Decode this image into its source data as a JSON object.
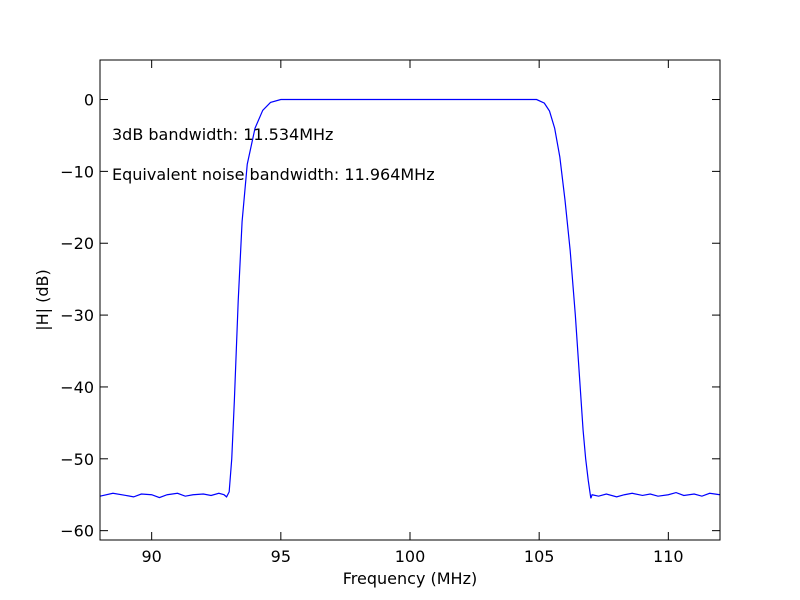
{
  "chart_data": {
    "type": "line",
    "xlabel": "Frequency (MHz)",
    "ylabel": "|H| (dB)",
    "xlim": [
      88,
      112
    ],
    "ylim": [
      -61.3,
      5.5
    ],
    "x_ticks": [
      90,
      95,
      100,
      105,
      110
    ],
    "y_ticks": [
      0,
      -10,
      -20,
      -30,
      -40,
      -50,
      -60
    ],
    "x_tick_labels": [
      "90",
      "95",
      "100",
      "105",
      "110"
    ],
    "y_tick_labels": [
      "0",
      "−10",
      "−20",
      "−30",
      "−40",
      "−50",
      "−60"
    ],
    "grid": false,
    "line_color": "#0000ff",
    "annotations": [
      "3dB bandwidth: 11.534MHz",
      "Equivalent noise bandwidth: 11.964MHz"
    ],
    "series": [
      {
        "x": [
          88,
          88.5,
          89,
          89.3,
          89.6,
          90,
          90.3,
          90.6,
          91,
          91.3,
          91.6,
          92,
          92.3,
          92.6,
          92.8,
          92.9,
          93.0,
          93.1,
          93.2,
          93.35,
          93.5,
          93.7,
          94.0,
          94.3,
          94.6,
          95.0,
          96,
          97,
          98,
          99,
          100,
          101,
          102,
          103,
          104,
          104.9,
          105.2,
          105.4,
          105.6,
          105.8,
          106.0,
          106.2,
          106.4,
          106.55,
          106.7,
          106.8,
          106.9,
          107.0,
          107.05,
          107.3,
          107.6,
          108,
          108.3,
          108.6,
          109,
          109.3,
          109.6,
          110,
          110.3,
          110.6,
          111,
          111.3,
          111.6,
          112
        ],
        "y": [
          -55.2,
          -54.8,
          -55.1,
          -55.3,
          -54.9,
          -55.0,
          -55.4,
          -55.0,
          -54.8,
          -55.2,
          -55.0,
          -54.9,
          -55.1,
          -54.8,
          -55.0,
          -55.3,
          -54.6,
          -50.0,
          -42.0,
          -28.0,
          -17.0,
          -9.0,
          -4.0,
          -1.5,
          -0.4,
          0.0,
          0.0,
          0.0,
          0.0,
          0.0,
          0.0,
          0.0,
          0.0,
          0.0,
          0.0,
          0.0,
          -0.5,
          -1.6,
          -4.0,
          -8.0,
          -14.0,
          -21.0,
          -30.0,
          -38.0,
          -46.0,
          -50.0,
          -53.0,
          -55.5,
          -55.0,
          -55.2,
          -54.9,
          -55.3,
          -55.0,
          -54.8,
          -55.1,
          -54.9,
          -55.2,
          -55.0,
          -54.7,
          -55.1,
          -54.9,
          -55.2,
          -54.8,
          -55.0
        ]
      }
    ]
  }
}
